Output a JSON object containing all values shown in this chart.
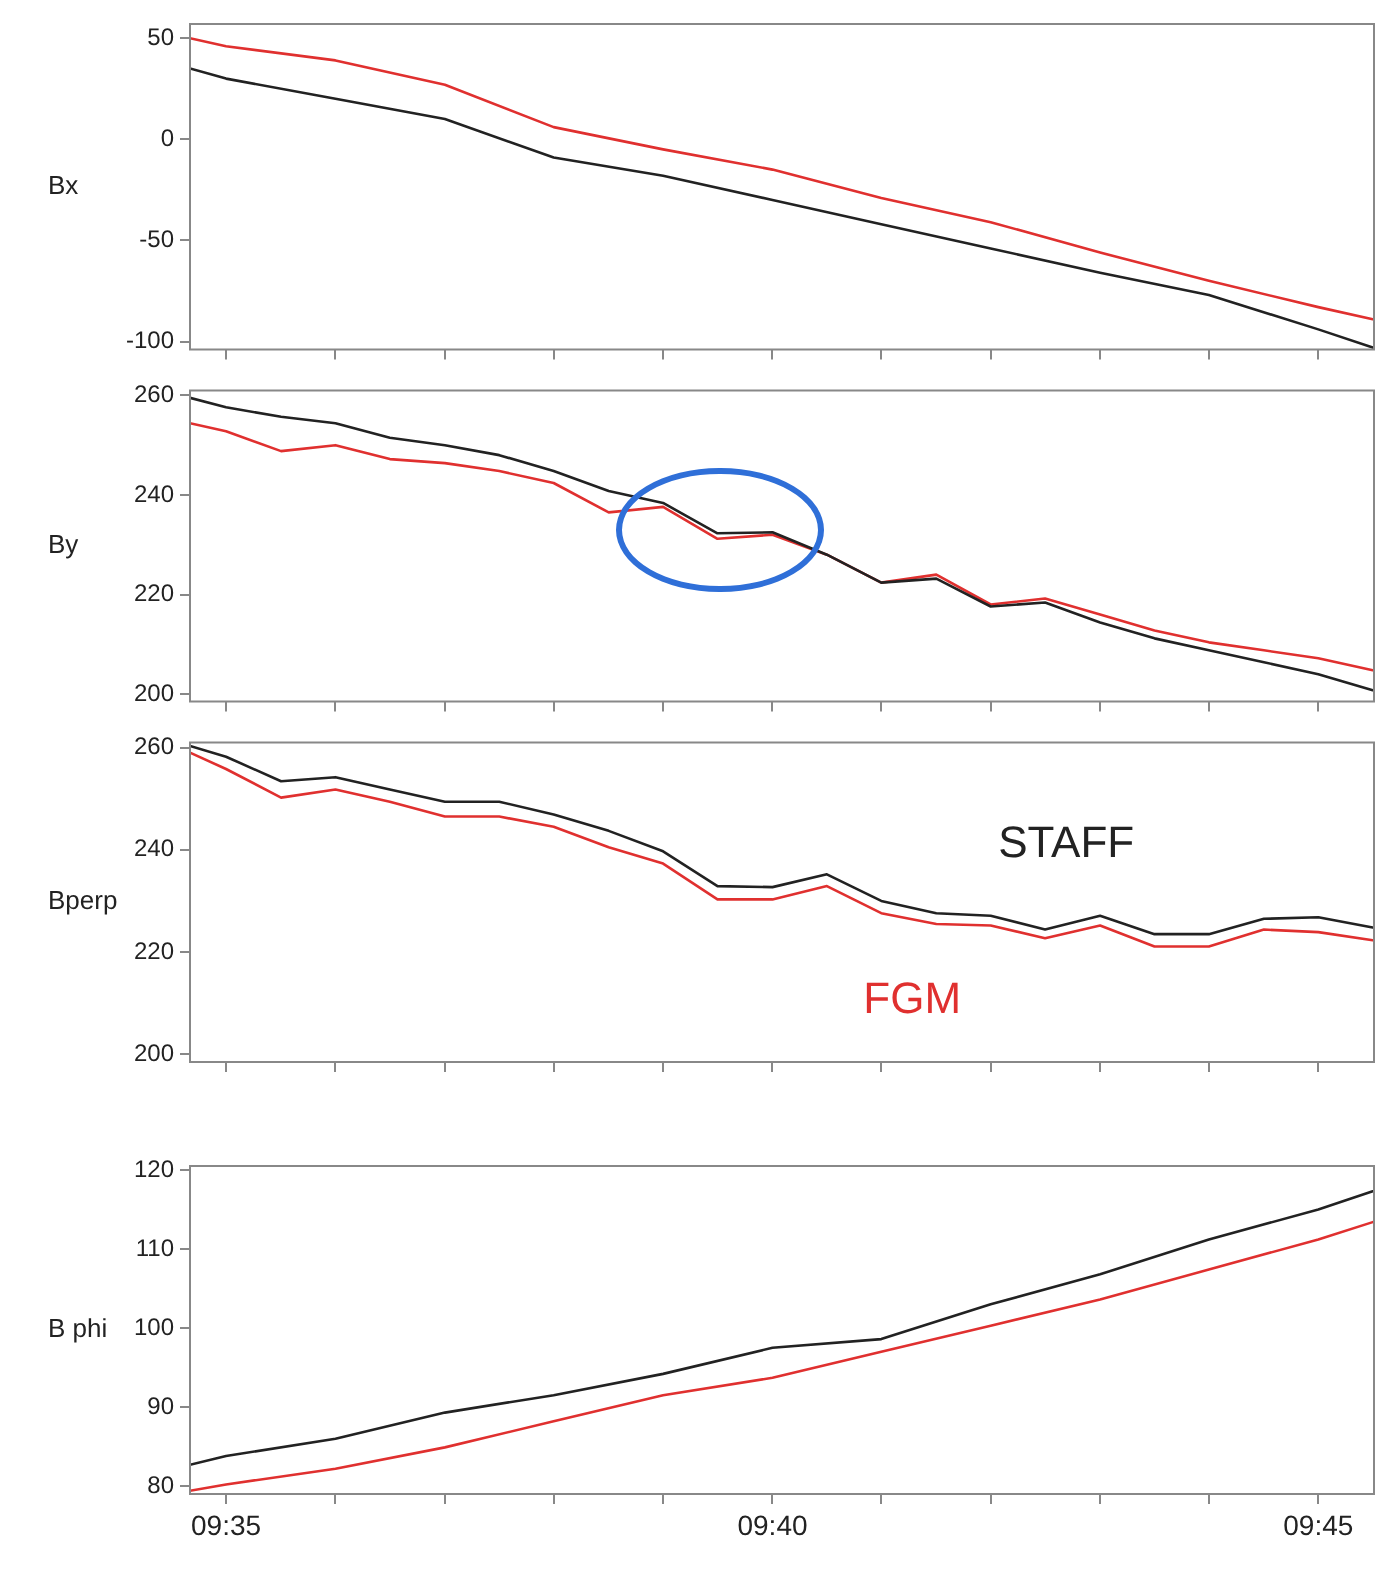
{
  "chart_data": [
    {
      "type": "line",
      "ylabel": "Bx",
      "tick_labels": "y",
      "marker": "none",
      "line_style": "solid",
      "grid": false,
      "x": [
        9.5778,
        9.5833,
        9.6,
        9.6167,
        9.6333,
        9.65,
        9.6667,
        9.6833,
        9.7,
        9.7167,
        9.7333,
        9.75,
        9.7583
      ],
      "xlim": [
        9.5778,
        9.7585
      ],
      "xticks": [
        {
          "value": 9.5833,
          "label": null
        },
        {
          "value": 9.6,
          "label": null
        },
        {
          "value": 9.6167,
          "label": null
        },
        {
          "value": 9.6333,
          "label": null
        },
        {
          "value": 9.65,
          "label": null
        },
        {
          "value": 9.6667,
          "label": null
        },
        {
          "value": 9.6833,
          "label": null
        },
        {
          "value": 9.7,
          "label": null
        },
        {
          "value": 9.7167,
          "label": null
        },
        {
          "value": 9.7333,
          "label": null
        },
        {
          "value": 9.75,
          "label": null
        }
      ],
      "ylim": [
        -104,
        57
      ],
      "yticks": [
        -100,
        -50,
        0,
        50
      ],
      "series": [
        {
          "color": "#222222",
          "values": [
            35,
            30,
            20,
            10,
            -9,
            -18,
            -30,
            -42,
            -54,
            -66,
            -77,
            -94,
            -103
          ]
        },
        {
          "color": "#e0302f",
          "values": [
            50,
            46,
            39,
            27,
            6,
            -5,
            -15,
            -29,
            -41,
            -56,
            -70,
            -83,
            -89
          ]
        }
      ]
    },
    {
      "type": "line",
      "ylabel": "By",
      "tick_labels": "y",
      "marker": "none",
      "line_style": "solid",
      "grid": false,
      "x": [
        9.5778,
        9.5833,
        9.5917,
        9.6,
        9.6083,
        9.6167,
        9.625,
        9.6333,
        9.6417,
        9.65,
        9.6583,
        9.6667,
        9.675,
        9.6833,
        9.6917,
        9.7,
        9.7083,
        9.7167,
        9.725,
        9.7333,
        9.7417,
        9.75,
        9.7583
      ],
      "xlim": [
        9.5778,
        9.7585
      ],
      "xticks": [
        {
          "value": 9.5833,
          "label": null
        },
        {
          "value": 9.6,
          "label": null
        },
        {
          "value": 9.6167,
          "label": null
        },
        {
          "value": 9.6333,
          "label": null
        },
        {
          "value": 9.65,
          "label": null
        },
        {
          "value": 9.6667,
          "label": null
        },
        {
          "value": 9.6833,
          "label": null
        },
        {
          "value": 9.7,
          "label": null
        },
        {
          "value": 9.7167,
          "label": null
        },
        {
          "value": 9.7333,
          "label": null
        },
        {
          "value": 9.75,
          "label": null
        }
      ],
      "ylim": [
        198.5,
        261
      ],
      "yticks": [
        200,
        220,
        240,
        260
      ],
      "series": [
        {
          "color": "#222222",
          "values": [
            259.5,
            257.6,
            255.7,
            254.4,
            251.5,
            250,
            248,
            244.8,
            240.8,
            238.4,
            232.3,
            232.5,
            228,
            222.4,
            223.2,
            217.6,
            218.4,
            214.4,
            211.2,
            208.8,
            206.4,
            204,
            200.8
          ]
        },
        {
          "color": "#e0302f",
          "values": [
            254.4,
            252.8,
            248.8,
            250,
            247.2,
            246.4,
            244.8,
            242.4,
            236.5,
            237.6,
            231.2,
            232,
            228,
            222.4,
            224,
            218,
            219.2,
            216,
            212.8,
            210.4,
            208.8,
            207.2,
            204.8
          ]
        }
      ]
    },
    {
      "type": "line",
      "ylabel": "Bperp",
      "tick_labels": "y",
      "marker": "none",
      "line_style": "solid",
      "grid": false,
      "x": [
        9.5778,
        9.5833,
        9.5917,
        9.6,
        9.6083,
        9.6167,
        9.625,
        9.6333,
        9.6417,
        9.65,
        9.6583,
        9.6667,
        9.675,
        9.6833,
        9.6917,
        9.7,
        9.7083,
        9.7167,
        9.725,
        9.7333,
        9.7417,
        9.75,
        9.7583
      ],
      "xlim": [
        9.5778,
        9.7585
      ],
      "xticks": [
        {
          "value": 9.5833,
          "label": null
        },
        {
          "value": 9.6,
          "label": null
        },
        {
          "value": 9.6167,
          "label": null
        },
        {
          "value": 9.6333,
          "label": null
        },
        {
          "value": 9.65,
          "label": null
        },
        {
          "value": 9.6667,
          "label": null
        },
        {
          "value": 9.6833,
          "label": null
        },
        {
          "value": 9.7,
          "label": null
        },
        {
          "value": 9.7167,
          "label": null
        },
        {
          "value": 9.7333,
          "label": null
        },
        {
          "value": 9.75,
          "label": null
        }
      ],
      "ylim": [
        198.5,
        261
      ],
      "yticks": [
        200,
        220,
        240,
        260
      ],
      "series": [
        {
          "name": "STAFF",
          "color": "#222222",
          "values": [
            260.3,
            258.2,
            253.4,
            254.2,
            251.8,
            249.4,
            249.4,
            246.9,
            243.7,
            239.7,
            232.9,
            232.7,
            235.2,
            230,
            227.6,
            227.1,
            224.4,
            227.1,
            223.5,
            223.5,
            226.5,
            226.8,
            224.8
          ]
        },
        {
          "name": "FGM",
          "color": "#e0302f",
          "values": [
            259,
            255.8,
            250.2,
            251.8,
            249.4,
            246.5,
            246.5,
            244.5,
            240.5,
            237.3,
            230.3,
            230.3,
            232.9,
            227.6,
            225.5,
            225.2,
            222.7,
            225.2,
            221.1,
            221.1,
            224.4,
            223.9,
            222.3
          ]
        }
      ]
    },
    {
      "type": "line",
      "ylabel": "B phi",
      "marker": "none",
      "line_style": "solid",
      "grid": false,
      "x": [
        9.5778,
        9.5833,
        9.6,
        9.6167,
        9.6333,
        9.65,
        9.6667,
        9.6833,
        9.7,
        9.7167,
        9.7333,
        9.75,
        9.7583
      ],
      "xlim": [
        9.5778,
        9.7585
      ],
      "xticks": [
        {
          "value": 9.5833,
          "label": "09:35"
        },
        {
          "value": 9.6,
          "label": null
        },
        {
          "value": 9.6167,
          "label": null
        },
        {
          "value": 9.6333,
          "label": null
        },
        {
          "value": 9.65,
          "label": null
        },
        {
          "value": 9.6667,
          "label": "09:40"
        },
        {
          "value": 9.6833,
          "label": null
        },
        {
          "value": 9.7,
          "label": null
        },
        {
          "value": 9.7167,
          "label": null
        },
        {
          "value": 9.7333,
          "label": null
        },
        {
          "value": 9.75,
          "label": "09:45"
        }
      ],
      "ylim": [
        79,
        120.5
      ],
      "yticks": [
        80,
        90,
        100,
        110,
        120
      ],
      "series": [
        {
          "color": "#222222",
          "values": [
            82.7,
            83.8,
            86,
            89.3,
            91.5,
            94.2,
            97.5,
            98.6,
            103,
            106.8,
            111.2,
            115,
            117.3
          ]
        },
        {
          "color": "#e0302f",
          "values": [
            79.4,
            80.2,
            82.2,
            84.9,
            88.2,
            91.5,
            93.7,
            97,
            100.3,
            103.6,
            107.4,
            111.2,
            113.4
          ]
        }
      ]
    }
  ]
}
